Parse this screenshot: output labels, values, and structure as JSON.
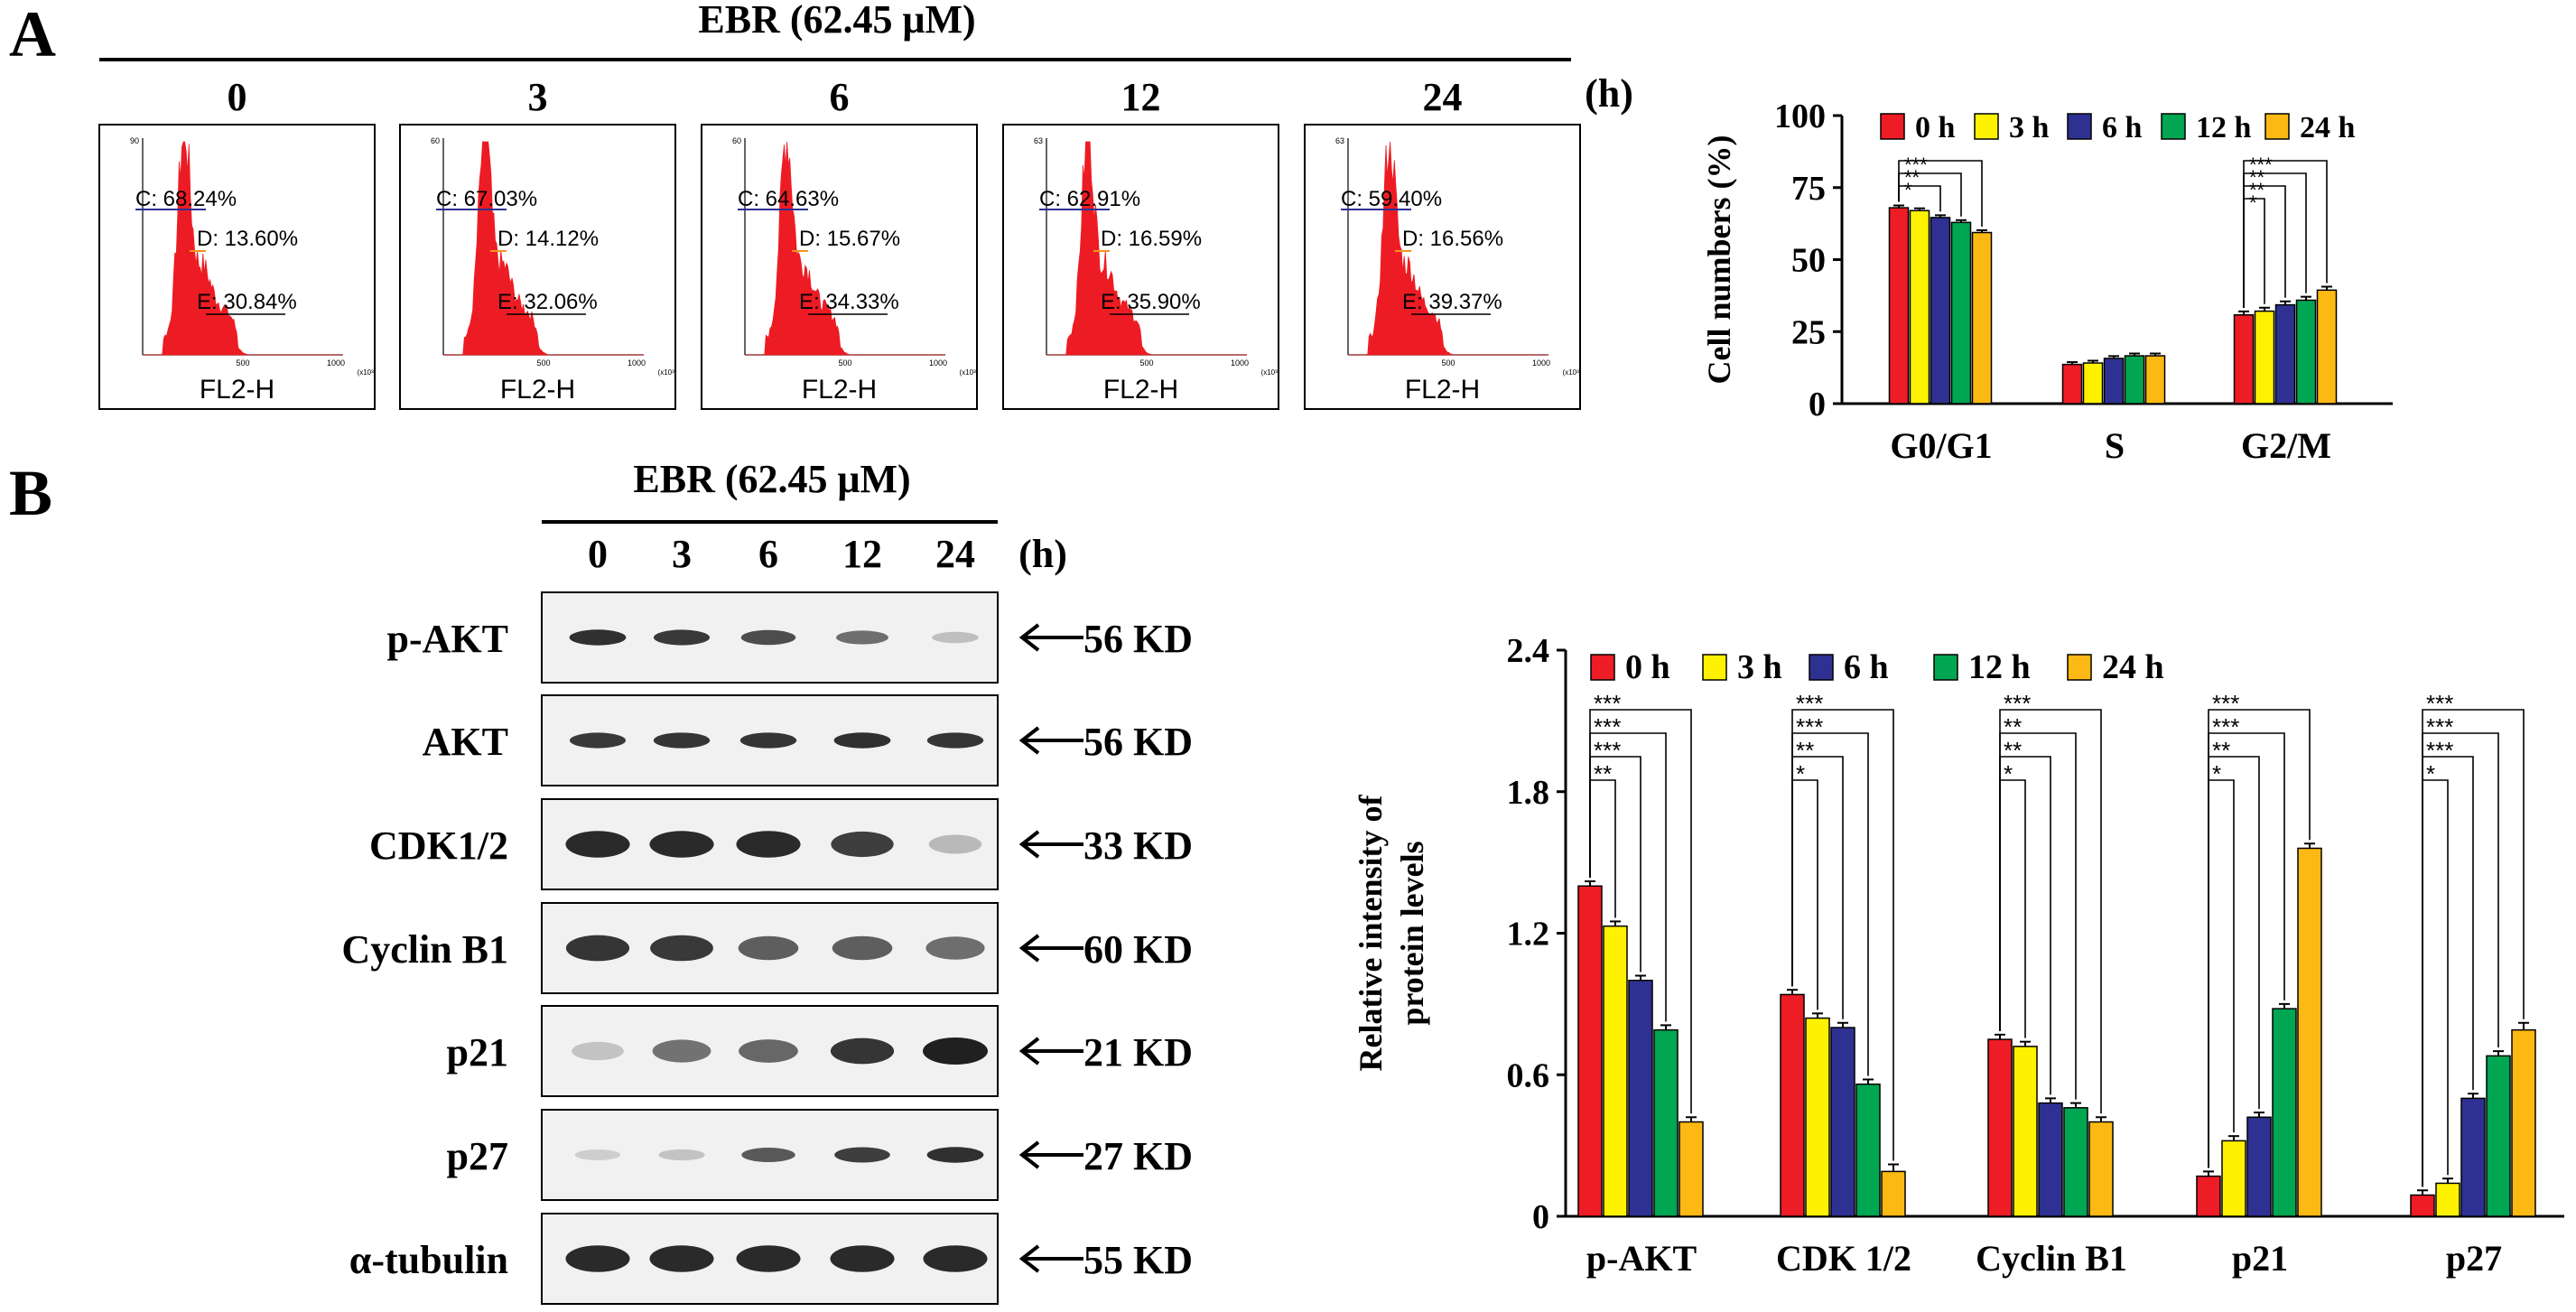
{
  "panel_a": {
    "label": "A",
    "treatment": "EBR (62.45 μM)",
    "hour_unit": "(h)",
    "histograms": [
      {
        "time": "0",
        "c": "C: 68.24%",
        "d": "D: 13.60%",
        "e": "E: 30.84%",
        "ytop": "90",
        "xlabel": "FL2-H",
        "xmid": "500",
        "xmax": "1000",
        "xunit": "(x10³)",
        "peak": 0.98
      },
      {
        "time": "3",
        "c": "C: 67.03%",
        "d": "D: 14.12%",
        "e": "E: 32.06%",
        "ytop": "60",
        "xlabel": "FL2-H",
        "xmid": "500",
        "xmax": "1000",
        "xunit": "(x10³)",
        "peak": 0.97
      },
      {
        "time": "6",
        "c": "C: 64.63%",
        "d": "D: 15.67%",
        "e": "E: 34.33%",
        "ytop": "60",
        "xlabel": "FL2-H",
        "xmid": "500",
        "xmax": "1000",
        "xunit": "(x10³)",
        "peak": 0.95
      },
      {
        "time": "12",
        "c": "C: 62.91%",
        "d": "D: 16.59%",
        "e": "E: 35.90%",
        "ytop": "63",
        "xlabel": "FL2-H",
        "xmid": "500",
        "xmax": "1000",
        "xunit": "(x10³)",
        "peak": 0.96
      },
      {
        "time": "24",
        "c": "C: 59.40%",
        "d": "D: 16.56%",
        "e": "E: 39.37%",
        "ytop": "63",
        "xlabel": "FL2-H",
        "xmid": "500",
        "xmax": "1000",
        "xunit": "(x10³)",
        "peak": 0.93
      }
    ]
  },
  "panel_b": {
    "label": "B",
    "treatment": "EBR (62.45 μM)",
    "times": [
      "0",
      "3",
      "6",
      "12",
      "24"
    ],
    "hour_unit": "(h)",
    "blots": [
      {
        "protein": "p-AKT",
        "size": "56 KD",
        "intensity": [
          0.92,
          0.88,
          0.78,
          0.62,
          0.22
        ],
        "style": "thin"
      },
      {
        "protein": "AKT",
        "size": "56 KD",
        "intensity": [
          0.88,
          0.9,
          0.9,
          0.92,
          0.9
        ],
        "style": "thin"
      },
      {
        "protein": "CDK1/2",
        "size": "33 KD",
        "intensity": [
          0.95,
          0.95,
          0.95,
          0.85,
          0.25
        ],
        "style": "thick"
      },
      {
        "protein": "Cyclin B1",
        "size": "60 KD",
        "intensity": [
          0.9,
          0.88,
          0.7,
          0.7,
          0.62
        ],
        "style": "thick"
      },
      {
        "protein": "p21",
        "size": "21 KD",
        "intensity": [
          0.2,
          0.6,
          0.65,
          0.9,
          1.0
        ],
        "style": "thick"
      },
      {
        "protein": "p27",
        "size": "27 KD",
        "intensity": [
          0.15,
          0.2,
          0.72,
          0.85,
          0.92
        ],
        "style": "thin"
      },
      {
        "protein": "α-tubulin",
        "size": "55 KD",
        "intensity": [
          0.95,
          0.95,
          0.95,
          0.95,
          0.95
        ],
        "style": "thick"
      }
    ]
  },
  "colors": {
    "0 h": "#ee1c25",
    "3 h": "#fff200",
    "6 h": "#2e3192",
    "12 h": "#00a651",
    "24 h": "#fdb913",
    "histogram": "#ed1c24"
  },
  "chart_data": [
    {
      "type": "bar",
      "title": "",
      "ylabel": "Cell numbers (%)",
      "xlabel": "",
      "ylim": [
        0,
        100
      ],
      "yticks": [
        "0",
        "25",
        "50",
        "75",
        "100"
      ],
      "categories": [
        "G0/G1",
        "S",
        "G2/M"
      ],
      "series": [
        {
          "name": "0 h",
          "values": [
            68,
            13.6,
            30.8
          ],
          "errors": [
            0.8,
            0.8,
            1.2
          ]
        },
        {
          "name": "3 h",
          "values": [
            67,
            14.1,
            32.1
          ],
          "errors": [
            0.8,
            0.8,
            1.2
          ]
        },
        {
          "name": "6 h",
          "values": [
            64.6,
            15.7,
            34.3
          ],
          "errors": [
            0.8,
            0.8,
            1.2
          ]
        },
        {
          "name": "12 h",
          "values": [
            62.9,
            16.6,
            35.9
          ],
          "errors": [
            0.8,
            0.8,
            1.2
          ]
        },
        {
          "name": "24 h",
          "values": [
            59.4,
            16.6,
            39.4
          ],
          "errors": [
            0.8,
            0.8,
            1.2
          ]
        }
      ],
      "significance": [
        {
          "category": 0,
          "marks": [
            "*",
            "**",
            "***"
          ]
        },
        {
          "category": 2,
          "marks": [
            "*",
            "**",
            "**",
            "***"
          ]
        }
      ]
    },
    {
      "type": "bar",
      "title": "",
      "ylabel": "Relative intensity  of\nprotein levels",
      "xlabel": "",
      "ylim": [
        0,
        2.4
      ],
      "yticks": [
        "0",
        "0.6",
        "1.2",
        "1.8",
        "2.4"
      ],
      "categories": [
        "p-AKT",
        "CDK 1/2",
        "Cyclin B1",
        "p21",
        "p27"
      ],
      "series": [
        {
          "name": "0 h",
          "values": [
            1.4,
            0.94,
            0.75,
            0.17,
            0.09
          ],
          "errors": [
            0.02,
            0.02,
            0.02,
            0.02,
            0.02
          ]
        },
        {
          "name": "3 h",
          "values": [
            1.23,
            0.84,
            0.72,
            0.32,
            0.14
          ],
          "errors": [
            0.02,
            0.02,
            0.02,
            0.02,
            0.02
          ]
        },
        {
          "name": "6 h",
          "values": [
            1.0,
            0.8,
            0.48,
            0.42,
            0.5
          ],
          "errors": [
            0.02,
            0.02,
            0.02,
            0.02,
            0.02
          ]
        },
        {
          "name": "12 h",
          "values": [
            0.79,
            0.56,
            0.46,
            0.88,
            0.68
          ],
          "errors": [
            0.02,
            0.02,
            0.02,
            0.02,
            0.02
          ]
        },
        {
          "name": "24 h",
          "values": [
            0.4,
            0.19,
            0.4,
            1.56,
            0.79
          ],
          "errors": [
            0.02,
            0.03,
            0.02,
            0.02,
            0.03
          ]
        }
      ],
      "significance": [
        {
          "category": 0,
          "marks": [
            "**",
            "***",
            "***",
            "***"
          ]
        },
        {
          "category": 1,
          "marks": [
            "*",
            "**",
            "***",
            "***"
          ]
        },
        {
          "category": 2,
          "marks": [
            "*",
            "**",
            "**",
            "***"
          ]
        },
        {
          "category": 3,
          "marks": [
            "*",
            "**",
            "***",
            "***"
          ]
        },
        {
          "category": 4,
          "marks": [
            "*",
            "***",
            "***",
            "***"
          ]
        }
      ]
    }
  ]
}
